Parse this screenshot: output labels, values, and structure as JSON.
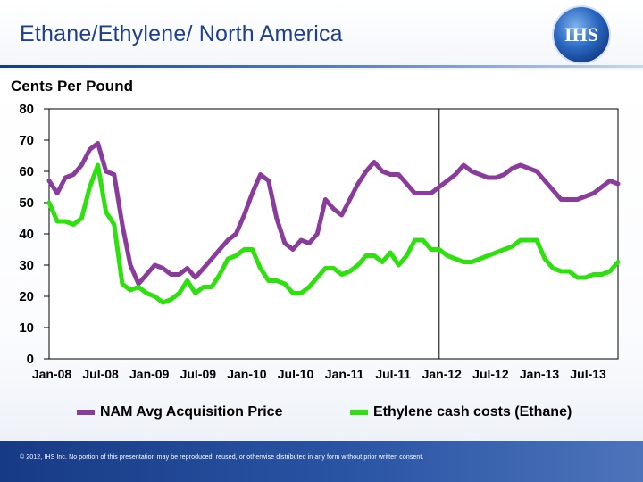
{
  "header": {
    "title": "Ethane/Ethylene/  North America",
    "logo_text": "IHS"
  },
  "footer": {
    "copyright": "© 2012, IHS Inc. No portion of this presentation may be reproduced, reused, or otherwise distributed in any form without prior written consent."
  },
  "colors": {
    "brand_blue": "#1f3f8f",
    "series_purple": "#8a3c9c",
    "series_green": "#2ee00d"
  },
  "chart_data": {
    "type": "line",
    "title": "",
    "ylabel": "Cents Per Pound",
    "xlabel": "",
    "ylim": [
      0,
      80
    ],
    "yticks": [
      0,
      10,
      20,
      30,
      40,
      50,
      60,
      70,
      80
    ],
    "xlim": [
      0,
      70
    ],
    "xtick_labels": [
      "Jan-08",
      "Jul-08",
      "Jan-09",
      "Jul-09",
      "Jan-10",
      "Jul-10",
      "Jan-11",
      "Jul-11",
      "Jan-12",
      "Jul-12",
      "Jan-13",
      "Jul-13"
    ],
    "xtick_positions": [
      0,
      6,
      12,
      18,
      24,
      30,
      36,
      42,
      48,
      54,
      60,
      66
    ],
    "forecast_divider_at": 48,
    "legend_position": "bottom",
    "series": [
      {
        "name": "NAM Avg Acquisition Price",
        "color": "#8a3c9c",
        "x": [
          0,
          1,
          2,
          3,
          4,
          5,
          6,
          7,
          8,
          9,
          10,
          11,
          12,
          13,
          14,
          15,
          16,
          17,
          18,
          19,
          20,
          21,
          22,
          23,
          24,
          25,
          26,
          27,
          28,
          29,
          30,
          31,
          32,
          33,
          34,
          35,
          36,
          37,
          38,
          39,
          40,
          41,
          42,
          43,
          44,
          45,
          46,
          47,
          48,
          49,
          50,
          51,
          52,
          53,
          54,
          55,
          56,
          57,
          58,
          59,
          60,
          61,
          62,
          63,
          64,
          65,
          66,
          67,
          68,
          69,
          70
        ],
        "values": [
          57,
          53,
          58,
          59,
          62,
          67,
          69,
          60,
          59,
          43,
          30,
          24,
          27,
          30,
          29,
          27,
          27,
          29,
          26,
          29,
          32,
          35,
          38,
          40,
          46,
          53,
          59,
          57,
          45,
          37,
          35,
          38,
          37,
          40,
          51,
          48,
          46,
          51,
          56,
          60,
          63,
          60,
          59,
          59,
          56,
          53,
          53,
          53,
          55,
          57,
          59,
          62,
          60,
          59,
          58,
          58,
          59,
          61,
          62,
          61,
          60,
          57,
          54,
          51,
          51,
          51,
          52,
          53,
          55,
          57,
          56
        ]
      },
      {
        "name": "Ethylene cash costs (Ethane)",
        "color": "#2ee00d",
        "x": [
          0,
          1,
          2,
          3,
          4,
          5,
          6,
          7,
          8,
          9,
          10,
          11,
          12,
          13,
          14,
          15,
          16,
          17,
          18,
          19,
          20,
          21,
          22,
          23,
          24,
          25,
          26,
          27,
          28,
          29,
          30,
          31,
          32,
          33,
          34,
          35,
          36,
          37,
          38,
          39,
          40,
          41,
          42,
          43,
          44,
          45,
          46,
          47,
          48,
          49,
          50,
          51,
          52,
          53,
          54,
          55,
          56,
          57,
          58,
          59,
          60,
          61,
          62,
          63,
          64,
          65,
          66,
          67,
          68,
          69,
          70
        ],
        "values": [
          50,
          44,
          44,
          43,
          45,
          55,
          62,
          47,
          43,
          24,
          22,
          23,
          21,
          20,
          18,
          19,
          21,
          25,
          21,
          23,
          23,
          27,
          32,
          33,
          35,
          35,
          29,
          25,
          25,
          24,
          21,
          21,
          23,
          26,
          29,
          29,
          27,
          28,
          30,
          33,
          33,
          31,
          34,
          30,
          33,
          38,
          38,
          35,
          35,
          33,
          32,
          31,
          31,
          32,
          33,
          34,
          35,
          36,
          38,
          38,
          38,
          32,
          29,
          28,
          28,
          26,
          26,
          27,
          27,
          28,
          31
        ]
      }
    ]
  }
}
